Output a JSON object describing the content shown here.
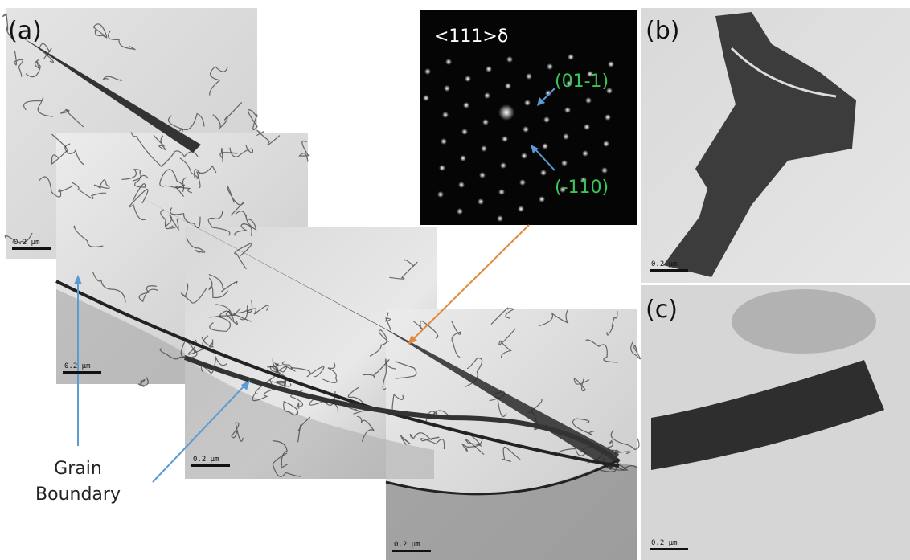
{
  "panel_labels": [
    "(a)",
    "(b)",
    "(c)"
  ],
  "diffraction": {
    "zone_axis": "<111>δ",
    "spots": [
      "(01-1)",
      "(-110)"
    ]
  },
  "annotation": {
    "lines": [
      "Grain",
      "Boundary"
    ]
  },
  "scale_bars": [
    "0.2 μm",
    "0.2 μm",
    "0.2 μm",
    "0.2 μm",
    "0.2 μm",
    "0.2 μm"
  ]
}
